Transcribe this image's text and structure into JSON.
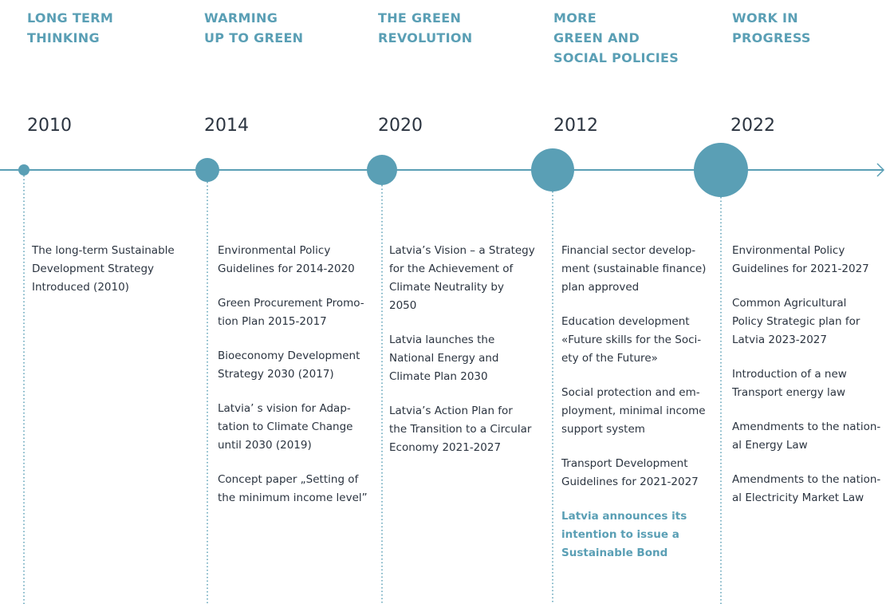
{
  "columns": [
    {
      "heading": "LONG TERM\nTHINKING",
      "year": "2010",
      "items": [
        {
          "text": "The long-term Sustainable\nDevelopment Strategy\nIntroduced (2010)"
        }
      ]
    },
    {
      "heading": "WARMING\nUP TO GREEN",
      "year": "2014",
      "items": [
        {
          "text": "Environmental Policy\nGuidelines for 2014-2020"
        },
        {
          "text": "Green Procurement Promo-\ntion Plan 2015-2017"
        },
        {
          "text": "Bioeconomy Development\nStrategy 2030 (2017)"
        },
        {
          "text": "Latvia’ s vision for Adap-\ntation to Climate Change\nuntil 2030 (2019)"
        },
        {
          "text": "Concept paper „Setting of\nthe minimum income level”"
        }
      ]
    },
    {
      "heading": "THE GREEN\nREVOLUTION",
      "year": "2020",
      "items": [
        {
          "text": "Latvia’s Vision – a Strategy\nfor the Achievement of\nClimate Neutrality by\n2050"
        },
        {
          "text": "Latvia launches the\nNational Energy and\nClimate Plan 2030"
        },
        {
          "text": "Latvia’s Action Plan for\nthe Transition to a Circular\nEconomy 2021-2027"
        }
      ]
    },
    {
      "heading": "MORE\nGREEN AND\nSOCIAL POLICIES",
      "year": "2012",
      "items": [
        {
          "text": "Financial sector develop-\nment (sustainable finance)\nplan approved"
        },
        {
          "text": "Education development\n«Future skills for the Soci-\nety of the Future»"
        },
        {
          "text": "Social protection and em-\nployment, minimal income\nsupport system"
        },
        {
          "text": "Transport Development\nGuidelines for 2021-2027"
        },
        {
          "text": "Latvia announces its\nintention to issue a\nSustainable Bond",
          "highlight": true
        }
      ]
    },
    {
      "heading": "WORK IN\nPROGRESS",
      "year": "2022",
      "items": [
        {
          "text": "Environmental Policy\nGuidelines for 2021-2027"
        },
        {
          "text": "Common Agricultural\nPolicy Strategic plan for\nLatvia 2023-2027"
        },
        {
          "text": "Introduction of a new\nTransport energy law"
        },
        {
          "text": "Amendments to the nation-\nal Energy Law"
        },
        {
          "text": "Amendments to the nation-\nal Electricity Market Law"
        }
      ]
    }
  ]
}
